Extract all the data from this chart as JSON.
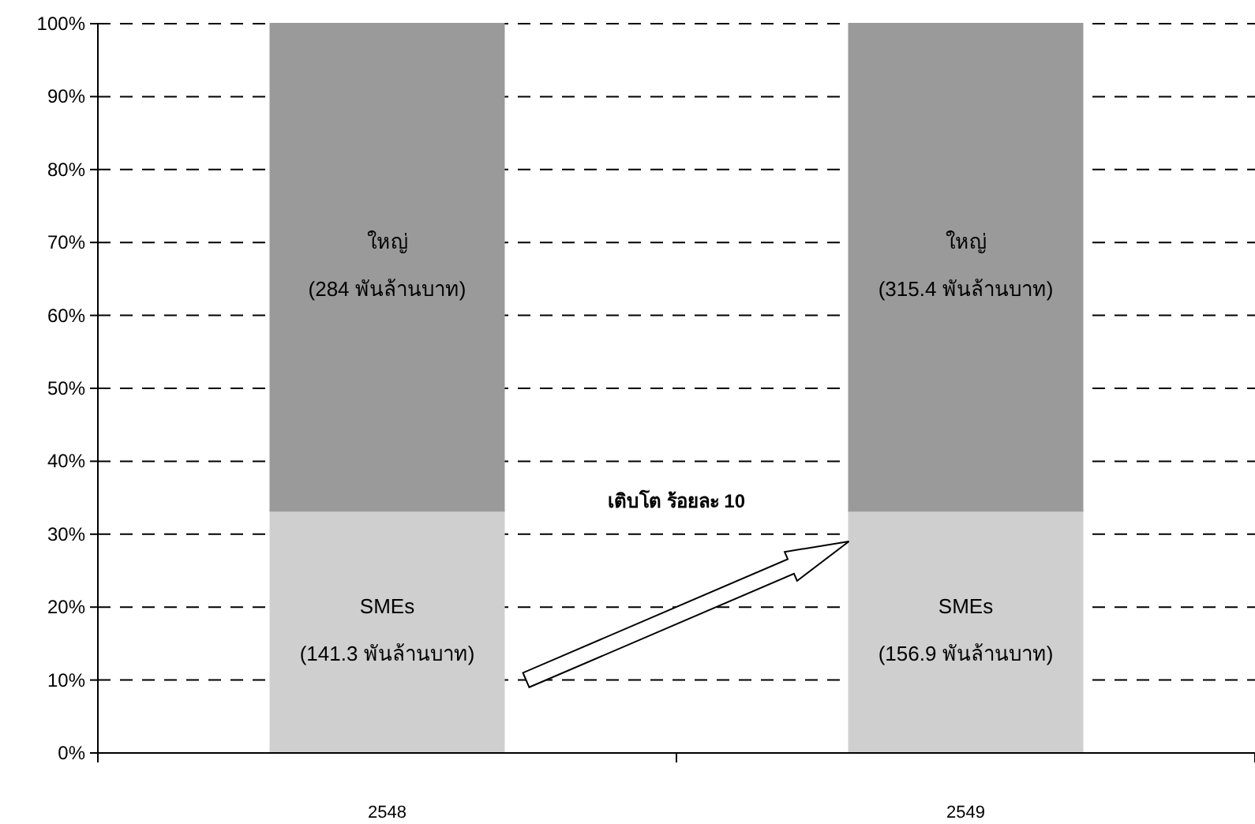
{
  "chart_data": {
    "type": "bar",
    "stacked": true,
    "categories": [
      "2548",
      "2549"
    ],
    "series": [
      {
        "name": "SMEs",
        "color": "#cfcfcf",
        "values": [
          33.2,
          33.2
        ]
      },
      {
        "name": "ใหญ่",
        "color": "#9a9a9a",
        "values": [
          66.8,
          66.8
        ]
      }
    ],
    "ylim": [
      0,
      100
    ],
    "yticks": [
      {
        "value": 0,
        "label": "0%"
      },
      {
        "value": 10,
        "label": "10%"
      },
      {
        "value": 20,
        "label": "20%"
      },
      {
        "value": 30,
        "label": "30%"
      },
      {
        "value": 40,
        "label": "40%"
      },
      {
        "value": 50,
        "label": "50%"
      },
      {
        "value": 60,
        "label": "60%"
      },
      {
        "value": 70,
        "label": "70%"
      },
      {
        "value": 80,
        "label": "80%"
      },
      {
        "value": 90,
        "label": "90%"
      },
      {
        "value": 100,
        "label": "100%"
      }
    ],
    "grid": "y",
    "annotations": [
      "(141.3 พันล้านบาท)",
      "(156.9 พันล้านบาท)",
      "(284 พันล้านบาท)",
      "(315.4 พันล้านบาท)",
      "เติบโต ร้อยละ 10"
    ]
  }
}
